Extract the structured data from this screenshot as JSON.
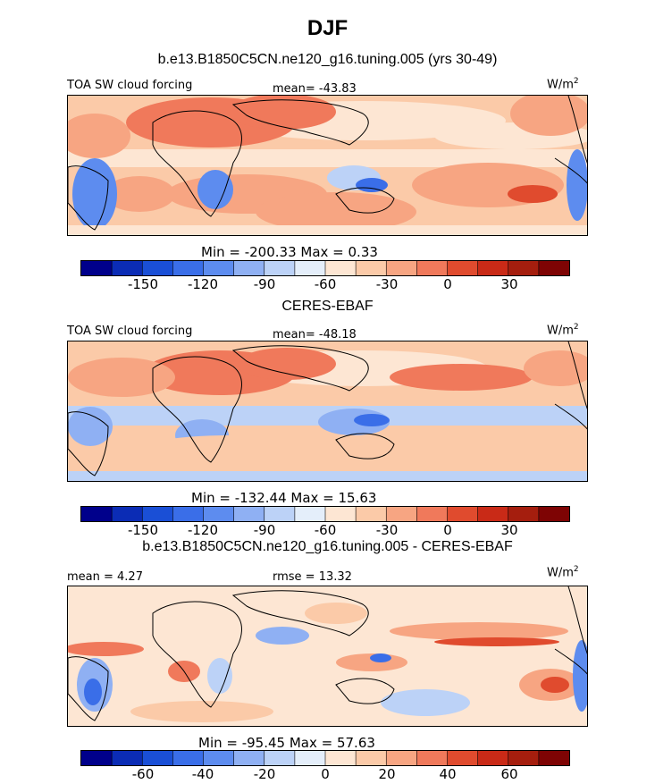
{
  "page": {
    "title": "DJF"
  },
  "panels": [
    {
      "header": "b.e13.B1850C5CN.ne120_g16.tuning.005 (yrs 30-49)",
      "left_label": "TOA SW cloud forcing",
      "center_label": "mean= -43.83",
      "units": "W/m",
      "units_sup": "2",
      "min_max": "Min = -200.33  Max =   0.33",
      "colorbar_ticks": [
        "-150",
        "-120",
        "-90",
        "-60",
        "-30",
        "0",
        "30"
      ]
    },
    {
      "header": "CERES-EBAF",
      "left_label": "TOA SW cloud forcing",
      "center_label": "mean= -48.18",
      "units": "W/m",
      "units_sup": "2",
      "min_max": "Min = -132.44  Max =  15.63",
      "colorbar_ticks": [
        "-150",
        "-120",
        "-90",
        "-60",
        "-30",
        "0",
        "30"
      ]
    },
    {
      "header": "b.e13.B1850C5CN.ne120_g16.tuning.005 - CERES-EBAF",
      "left_label": "mean =   4.27",
      "center_label": "rmse =  13.32",
      "units": "W/m",
      "units_sup": "2",
      "min_max": "Min = -95.45  Max =  57.63",
      "colorbar_ticks": [
        "-60",
        "-40",
        "-20",
        "0",
        "20",
        "40",
        "60"
      ]
    }
  ],
  "colorbar": {
    "colors": [
      "#00008b",
      "#0b2cb5",
      "#1a4fd6",
      "#3a6ee8",
      "#5d8cef",
      "#8fb0f3",
      "#bcd2f7",
      "#e4eefa",
      "#fde6d3",
      "#fbcaa8",
      "#f7a582",
      "#f0795b",
      "#e04b2e",
      "#c92a17",
      "#a51e0e",
      "#7e0404"
    ]
  },
  "chart_data": {
    "type": "heatmap",
    "title": "DJF",
    "variable": "TOA SW cloud forcing",
    "units": "W/m2",
    "panels": [
      {
        "name": "b.e13.B1850C5CN.ne120_g16.tuning.005 (yrs 30-49)",
        "mean": -43.83,
        "min": -200.33,
        "max": 0.33
      },
      {
        "name": "CERES-EBAF",
        "mean": -48.18,
        "min": -132.44,
        "max": 15.63
      },
      {
        "name": "b.e13.B1850C5CN.ne120_g16.tuning.005 - CERES-EBAF",
        "mean": 4.27,
        "rmse": 13.32,
        "min": -95.45,
        "max": 57.63
      }
    ],
    "colorbar_levels_fields": [
      -150,
      -120,
      -90,
      -60,
      -30,
      0,
      30
    ],
    "colorbar_levels_diff": [
      -60,
      -40,
      -20,
      0,
      20,
      40,
      60
    ]
  }
}
